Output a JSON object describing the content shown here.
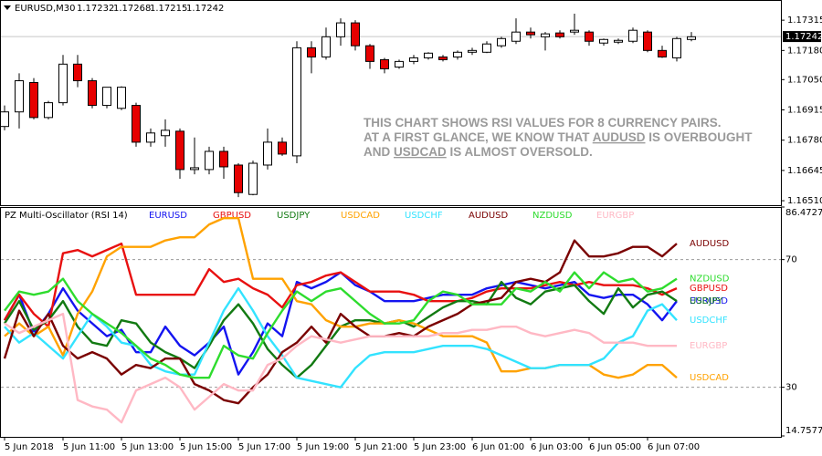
{
  "chart_data": [
    {
      "type": "candlestick",
      "title": "EURUSD,M30",
      "quote": [
        1.17232,
        1.17268,
        1.17215,
        1.17242
      ],
      "current_price": 1.17242,
      "ylim": [
        1.1649,
        1.17405
      ],
      "yticks": [
        {
          "value": 1.1651,
          "label": "1.16510"
        },
        1.16645,
        {
          "value": 1.1678,
          "label": "1.16780"
        },
        1.16915,
        {
          "value": 1.1705,
          "label": "1.17050"
        },
        {
          "value": 1.1718,
          "label": "1.17180"
        },
        1.17315
      ],
      "up_color": "#ffffff",
      "down_color": "#e60000",
      "ohlc": [
        [
          1.16841,
          1.16935,
          1.16824,
          1.16906
        ],
        [
          1.16906,
          1.17078,
          1.16832,
          1.17045
        ],
        [
          1.17037,
          1.17057,
          1.16873,
          1.16881
        ],
        [
          1.16881,
          1.16955,
          1.16873,
          1.16947
        ],
        [
          1.16947,
          1.1716,
          1.16935,
          1.17119
        ],
        [
          1.17119,
          1.1716,
          1.17016,
          1.17045
        ],
        [
          1.17045,
          1.17057,
          1.16922,
          1.16935
        ],
        [
          1.16935,
          1.17016,
          1.16922,
          1.17016
        ],
        [
          1.16922,
          1.1702,
          1.16914,
          1.17016
        ],
        [
          1.16935,
          1.16947,
          1.16751,
          1.16771
        ],
        [
          1.16771,
          1.16832,
          1.16751,
          1.16812
        ],
        [
          1.168,
          1.16873,
          1.16751,
          1.16824
        ],
        [
          1.1682,
          1.16832,
          1.16608,
          1.16649
        ],
        [
          1.16649,
          1.16792,
          1.16628,
          1.16657
        ],
        [
          1.16649,
          1.16751,
          1.16628,
          1.1673
        ],
        [
          1.1673,
          1.16751,
          1.16608,
          1.16661
        ],
        [
          1.16669,
          1.16677,
          1.16526,
          1.16546
        ],
        [
          1.16538,
          1.16689,
          1.16534,
          1.16677
        ],
        [
          1.16669,
          1.16832,
          1.16649,
          1.16771
        ],
        [
          1.16771,
          1.16792,
          1.1671,
          1.16718
        ],
        [
          1.1671,
          1.17221,
          1.16677,
          1.17192
        ],
        [
          1.17192,
          1.17221,
          1.17078,
          1.17151
        ],
        [
          1.17151,
          1.17282,
          1.17139,
          1.17241
        ],
        [
          1.17241,
          1.17323,
          1.17201,
          1.17303
        ],
        [
          1.17303,
          1.17315,
          1.1718,
          1.17201
        ],
        [
          1.17201,
          1.17209,
          1.17098,
          1.17131
        ],
        [
          1.17139,
          1.17147,
          1.17078,
          1.17098
        ],
        [
          1.17106,
          1.17139,
          1.17098,
          1.17131
        ],
        [
          1.17131,
          1.1716,
          1.17119,
          1.17147
        ],
        [
          1.17147,
          1.17172,
          1.17139,
          1.17168
        ],
        [
          1.17151,
          1.1716,
          1.17131,
          1.17139
        ],
        [
          1.17151,
          1.1718,
          1.17139,
          1.17172
        ],
        [
          1.17172,
          1.17192,
          1.1716,
          1.1718
        ],
        [
          1.17172,
          1.17221,
          1.17168,
          1.17209
        ],
        [
          1.17201,
          1.17241,
          1.17192,
          1.17233
        ],
        [
          1.17221,
          1.17323,
          1.17209,
          1.17262
        ],
        [
          1.17262,
          1.17282,
          1.17233,
          1.1725
        ],
        [
          1.17241,
          1.17262,
          1.1718,
          1.17254
        ],
        [
          1.17258,
          1.1727,
          1.17233,
          1.17241
        ],
        [
          1.17262,
          1.17344,
          1.1725,
          1.1727
        ],
        [
          1.17262,
          1.1727,
          1.17201,
          1.17221
        ],
        [
          1.17213,
          1.17233,
          1.17201,
          1.17229
        ],
        [
          1.17217,
          1.17233,
          1.17209,
          1.17225
        ],
        [
          1.17221,
          1.17282,
          1.17213,
          1.1727
        ],
        [
          1.17262,
          1.1727,
          1.17172,
          1.1718
        ],
        [
          1.1718,
          1.17201,
          1.17147,
          1.17151
        ],
        [
          1.17147,
          1.17241,
          1.17131,
          1.17233
        ],
        [
          1.17229,
          1.17262,
          1.17221,
          1.17241
        ]
      ],
      "annotation": [
        [
          {
            "text": "THIS CHART SHOWS RSI VALUES FOR 8 CURRENCY PAIRS."
          }
        ],
        [
          {
            "text": "AT A FIRST GLANCE, WE KNOW THAT "
          },
          {
            "text": "AUDUSD",
            "underline": true
          },
          {
            "text": " IS OVERBOUGHT"
          }
        ],
        [
          {
            "text": "AND "
          },
          {
            "text": "USDCAD",
            "underline": true
          },
          {
            "text": " IS ALMOST OVERSOLD."
          }
        ]
      ]
    },
    {
      "type": "line",
      "title": "PZ Multi-Oscillator (RSI 14)",
      "categories": [
        "5 Jun 2018",
        null,
        null,
        null,
        "5 Jun 11:00",
        null,
        null,
        null,
        "5 Jun 13:00",
        null,
        null,
        null,
        "5 Jun 15:00",
        null,
        null,
        null,
        "5 Jun 17:00",
        null,
        null,
        null,
        "5 Jun 19:00",
        null,
        null,
        null,
        "5 Jun 21:00",
        null,
        null,
        null,
        "5 Jun 23:00",
        null,
        null,
        null,
        "6 Jun 01:00",
        null,
        null,
        null,
        "6 Jun 03:00",
        null,
        null,
        null,
        "6 Jun 05:00",
        null,
        null,
        null,
        "6 Jun 07:00",
        null,
        null,
        null
      ],
      "ylim": [
        14.7577,
        86.4727
      ],
      "yticks": [
        14.7577,
        30,
        70,
        86.4727
      ],
      "series": [
        {
          "name": "EURUSD",
          "color": "#1414f0",
          "values": [
            51,
            59,
            47,
            53,
            61,
            54,
            50,
            46,
            48,
            41,
            41,
            49,
            43,
            40,
            44,
            49,
            34,
            41,
            50,
            46,
            63,
            61,
            63,
            66,
            62,
            60,
            57,
            57,
            57,
            58,
            59,
            59,
            59,
            61,
            62,
            63,
            62,
            61,
            62,
            63,
            59,
            58,
            59,
            59,
            56,
            51,
            57,
            null
          ]
        },
        {
          "name": "GBPUSD",
          "color": "#e81010",
          "values": [
            51,
            59,
            53,
            49,
            72,
            73,
            71,
            73,
            75,
            59,
            59,
            59,
            59,
            59,
            67,
            63,
            64,
            61,
            59,
            55,
            62,
            63,
            65,
            66,
            63,
            60,
            60,
            60,
            59,
            57,
            57,
            57,
            58,
            60,
            61,
            61,
            61,
            62,
            63,
            62,
            63,
            62,
            62,
            62,
            61,
            59,
            61,
            null
          ]
        },
        {
          "name": "USDJPY",
          "color": "#127a12",
          "values": [
            50,
            57,
            48,
            51,
            57,
            49,
            44,
            43,
            51,
            50,
            44,
            41,
            39,
            36,
            43,
            51,
            56,
            50,
            42,
            37,
            33,
            37,
            43,
            49,
            51,
            51,
            50,
            51,
            49,
            52,
            55,
            57,
            57,
            56,
            63,
            58,
            56,
            60,
            61,
            62,
            57,
            53,
            61,
            55,
            59,
            60,
            57,
            null
          ]
        },
        {
          "name": "USDCAD",
          "color": "#ffa200",
          "values": [
            46,
            50,
            46,
            49,
            40,
            53,
            60,
            71,
            74,
            74,
            74,
            76,
            77,
            77,
            81,
            83,
            83,
            64,
            64,
            64,
            57,
            56,
            51,
            49,
            49,
            50,
            50,
            51,
            50,
            48,
            46,
            46,
            46,
            44,
            35,
            35,
            36,
            36,
            37,
            37,
            37,
            34,
            33,
            34,
            37,
            37,
            33,
            null
          ]
        },
        {
          "name": "USDCHF",
          "color": "#33e3ff",
          "values": [
            49,
            44,
            47,
            43,
            39,
            46,
            53,
            49,
            44,
            43,
            37,
            35,
            34,
            34,
            44,
            54,
            61,
            54,
            46,
            40,
            33,
            32,
            31,
            30,
            36,
            40,
            41,
            41,
            41,
            42,
            43,
            43,
            43,
            42,
            40,
            38,
            36,
            36,
            37,
            37,
            37,
            39,
            44,
            46,
            54,
            56,
            51,
            null
          ]
        },
        {
          "name": "AUDUSD",
          "color": "#7a0000",
          "values": [
            39,
            54,
            46,
            53,
            43,
            39,
            41,
            39,
            34,
            37,
            36,
            39,
            39,
            31,
            29,
            26,
            25,
            30,
            34,
            41,
            44,
            49,
            44,
            53,
            49,
            46,
            46,
            47,
            46,
            49,
            51,
            53,
            56,
            57,
            58,
            63,
            64,
            63,
            66,
            76,
            71,
            71,
            72,
            74,
            74,
            71,
            75,
            null
          ]
        },
        {
          "name": "NZDUSD",
          "color": "#2edc2e",
          "values": [
            54,
            60,
            59,
            60,
            64,
            57,
            53,
            50,
            47,
            43,
            39,
            37,
            34,
            33,
            33,
            43,
            40,
            39,
            47,
            54,
            60,
            57,
            60,
            61,
            57,
            53,
            50,
            50,
            51,
            57,
            60,
            59,
            56,
            56,
            56,
            61,
            60,
            63,
            60,
            66,
            61,
            66,
            63,
            64,
            60,
            61,
            64,
            null
          ]
        },
        {
          "name": "EURGBP",
          "color": "#ffb8c4",
          "values": [
            50,
            47,
            49,
            51,
            53,
            26,
            24,
            23,
            19,
            29,
            31,
            33,
            30,
            23,
            27,
            31,
            29,
            29,
            37,
            39,
            43,
            46,
            45,
            44,
            45,
            46,
            46,
            46,
            46,
            46,
            47,
            47,
            48,
            48,
            49,
            49,
            47,
            46,
            47,
            48,
            47,
            44,
            44,
            44,
            43,
            43,
            43,
            null
          ]
        }
      ]
    }
  ]
}
